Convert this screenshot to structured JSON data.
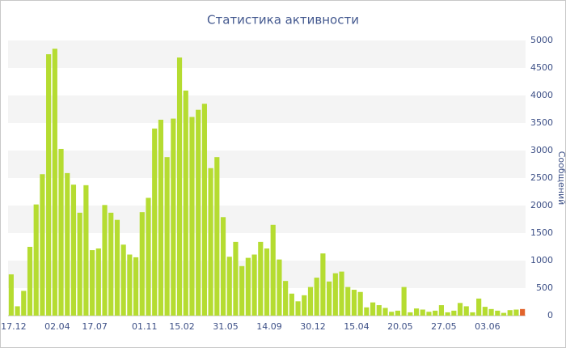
{
  "chart_data": {
    "type": "bar",
    "title": "Статистика активности",
    "y_label": "Сообщений",
    "categories": [
      "17.12",
      null,
      null,
      null,
      null,
      null,
      null,
      "02.04",
      null,
      null,
      null,
      null,
      null,
      "17.07",
      null,
      null,
      null,
      null,
      null,
      null,
      null,
      "01.11",
      null,
      null,
      null,
      null,
      null,
      "15.02",
      null,
      null,
      null,
      null,
      null,
      null,
      "31.05",
      null,
      null,
      null,
      null,
      null,
      null,
      "14.09",
      null,
      null,
      null,
      null,
      null,
      null,
      "30.12",
      null,
      null,
      null,
      null,
      null,
      null,
      "15.04",
      null,
      null,
      null,
      null,
      null,
      null,
      "20.05",
      null,
      null,
      null,
      null,
      null,
      null,
      "27.05",
      null,
      null,
      null,
      null,
      null,
      null,
      "03.06",
      null,
      null,
      null,
      null,
      null,
      null
    ],
    "values": [
      750,
      170,
      450,
      1250,
      2020,
      2570,
      4750,
      4850,
      3030,
      2590,
      2380,
      1870,
      2370,
      1190,
      1220,
      2010,
      1870,
      1740,
      1290,
      1110,
      1060,
      1880,
      2140,
      3400,
      3560,
      2880,
      3580,
      4690,
      4090,
      3610,
      3740,
      3850,
      2680,
      2880,
      1790,
      1070,
      1340,
      900,
      1050,
      1110,
      1340,
      1220,
      1650,
      1020,
      630,
      400,
      260,
      370,
      520,
      690,
      1130,
      620,
      770,
      800,
      520,
      470,
      430,
      150,
      240,
      190,
      140,
      70,
      90,
      520,
      60,
      130,
      110,
      70,
      90,
      190,
      60,
      90,
      230,
      170,
      60,
      310,
      160,
      120,
      90,
      50,
      100,
      110,
      120
    ],
    "color": "#b5dc31",
    "last_bar_color": "#e2642c",
    "ylim": [
      0,
      5000
    ],
    "yticks": [
      0,
      500,
      1000,
      1500,
      2000,
      2500,
      3000,
      3500,
      4000,
      4500,
      5000
    ],
    "grid": "bands"
  }
}
